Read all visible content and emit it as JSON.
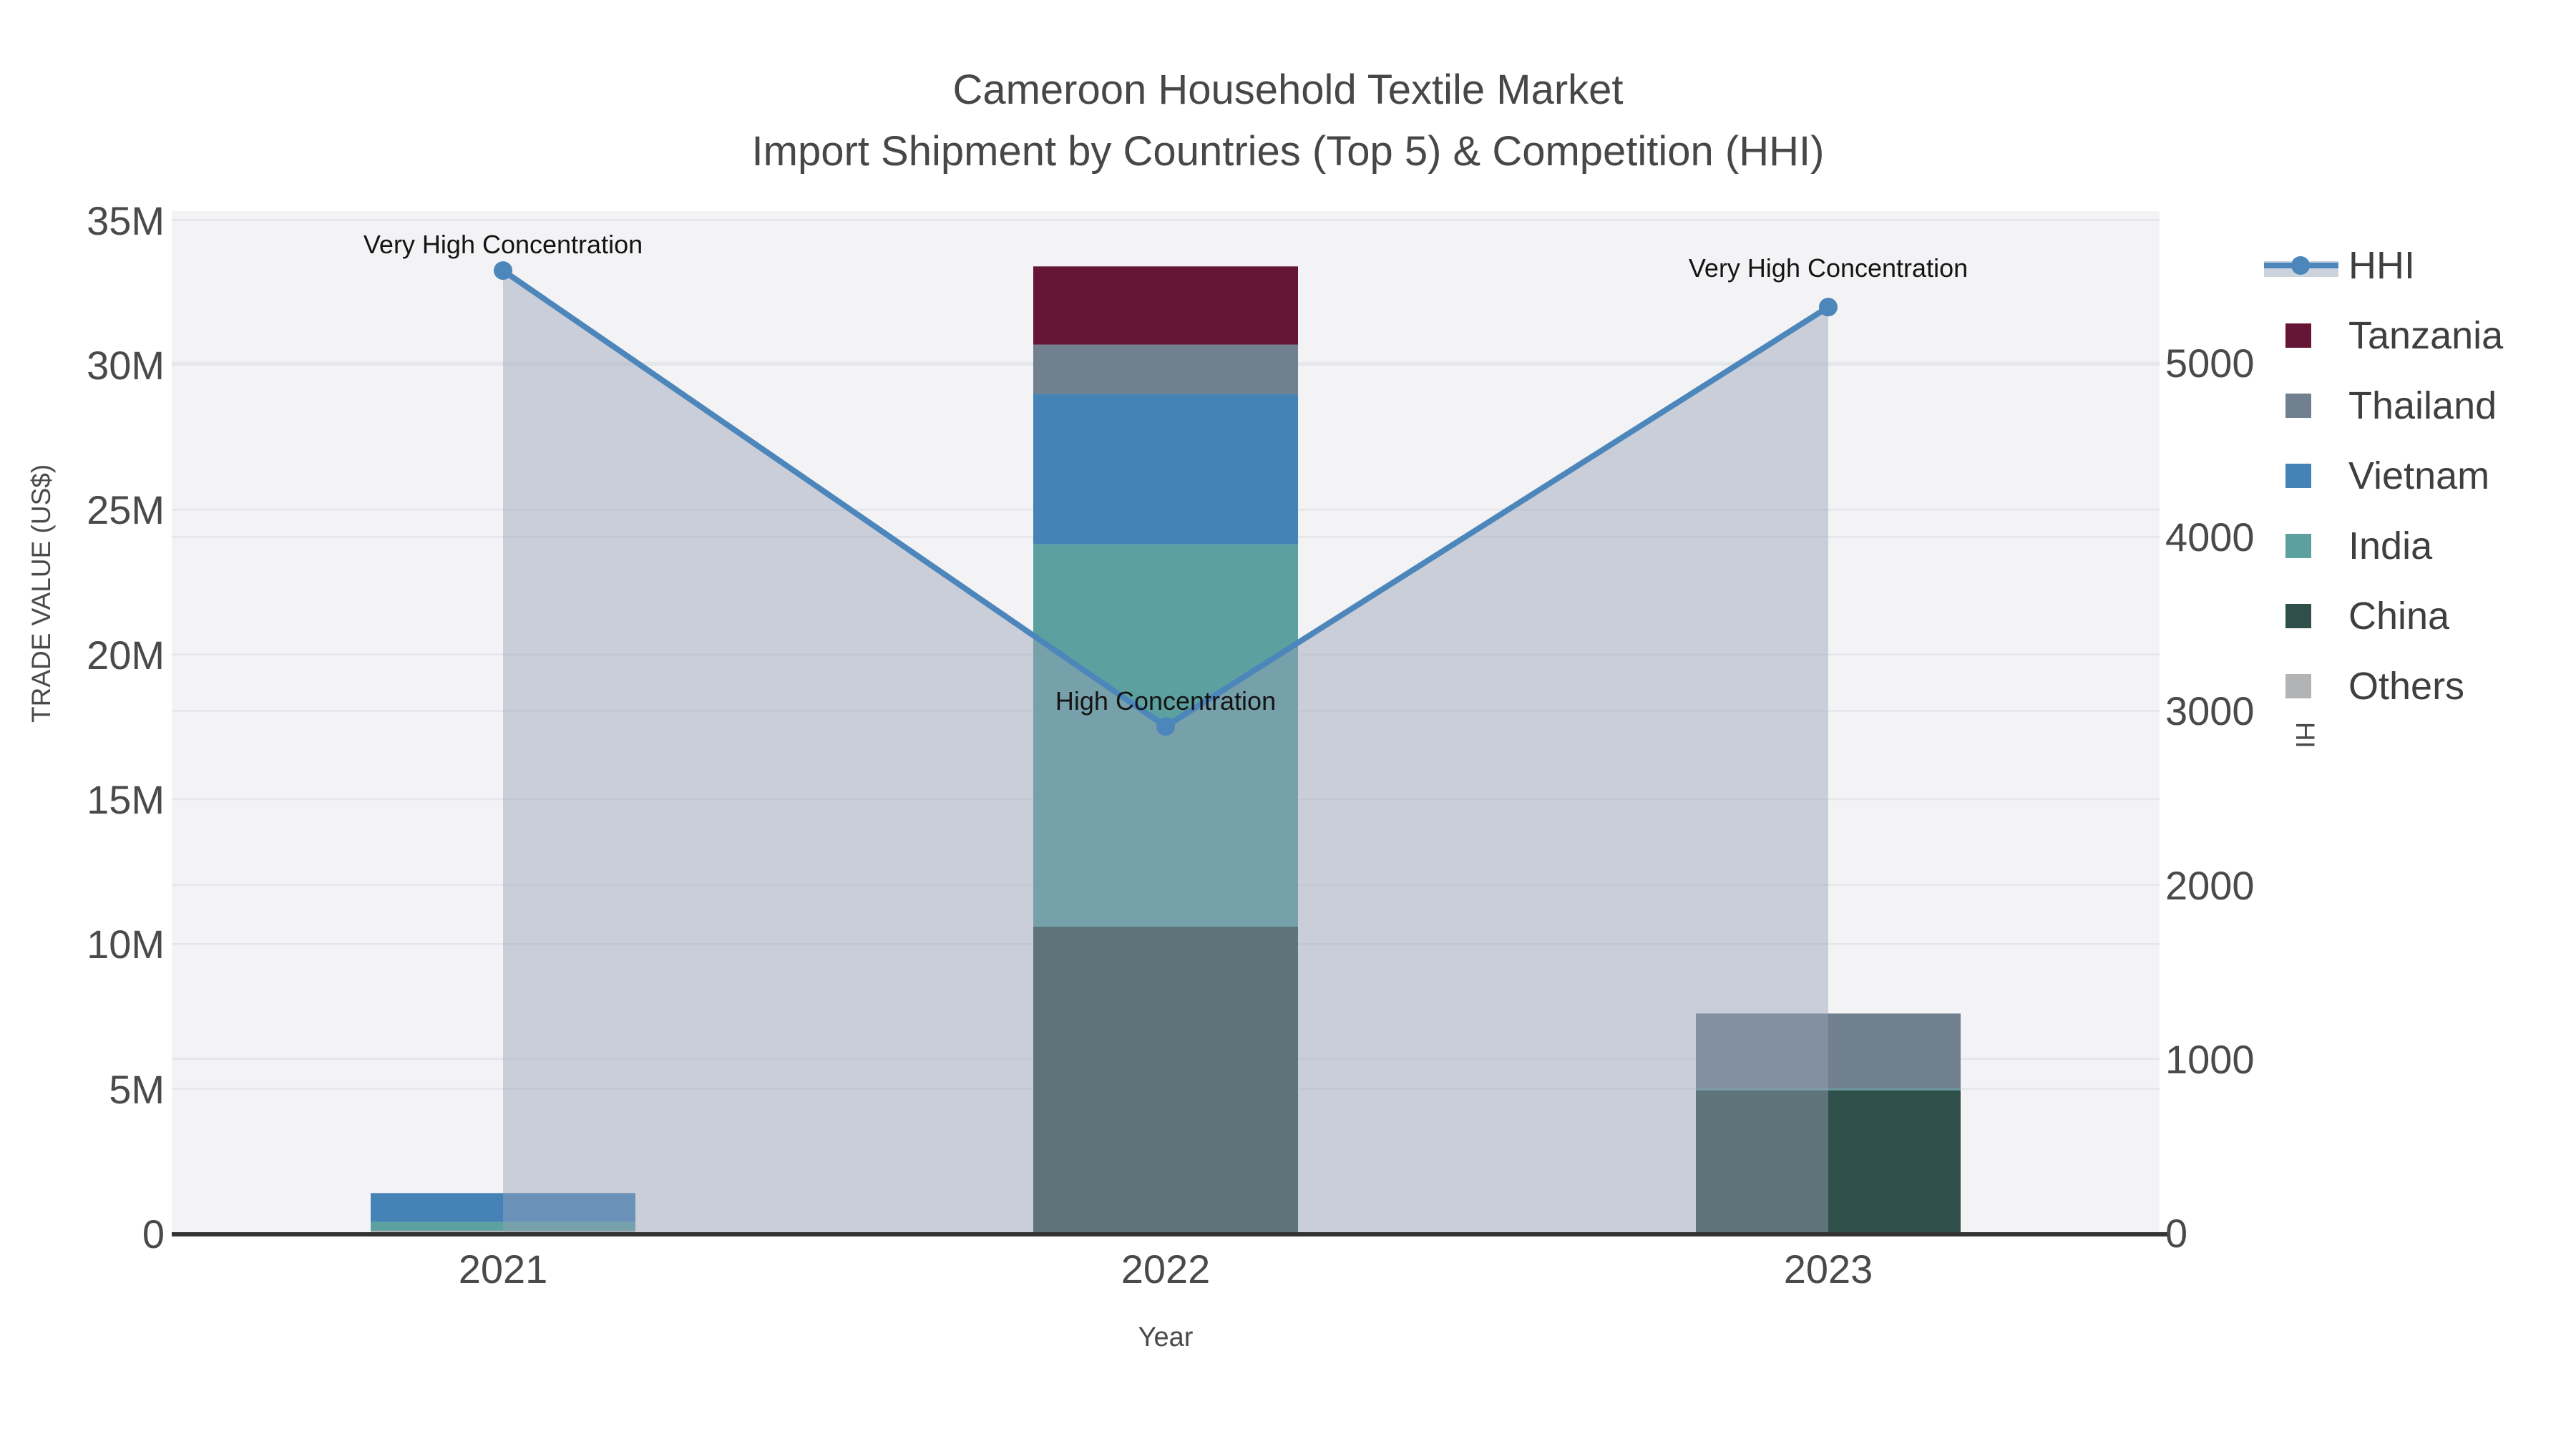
{
  "title": {
    "line1": "Cameroon Household Textile Market",
    "line2": "Import Shipment by Countries (Top 5) & Competition (HHI)"
  },
  "axes": {
    "x": {
      "title": "Year",
      "ticks": [
        "2021",
        "2022",
        "2023"
      ]
    },
    "y_left": {
      "title": "TRADE VALUE (US$)",
      "ticks": [
        "0",
        "5M",
        "10M",
        "15M",
        "20M",
        "25M",
        "30M",
        "35M"
      ],
      "tick_values_musd": [
        0,
        5,
        10,
        15,
        20,
        25,
        30,
        35
      ]
    },
    "y_right": {
      "title": "HHI",
      "ticks": [
        "0",
        "1000",
        "2000",
        "3000",
        "4000",
        "5000"
      ],
      "tick_values": [
        0,
        1000,
        2000,
        3000,
        4000,
        5000
      ]
    }
  },
  "legend": {
    "items": [
      {
        "label": "HHI",
        "type": "line",
        "color": "#4C86BB"
      },
      {
        "label": "Tanzania",
        "type": "swatch",
        "color": "#661536"
      },
      {
        "label": "Thailand",
        "type": "swatch",
        "color": "#71808F"
      },
      {
        "label": "Vietnam",
        "type": "swatch",
        "color": "#4583B7"
      },
      {
        "label": "India",
        "type": "swatch",
        "color": "#5CA1A0"
      },
      {
        "label": "China",
        "type": "swatch",
        "color": "#2F4F4A"
      },
      {
        "label": "Others",
        "type": "swatch",
        "color": "#B2B3B5"
      }
    ]
  },
  "annotations": [
    {
      "text": "Very High Concentration",
      "year": "2021",
      "dy": -35
    },
    {
      "text": "High Concentration",
      "year": "2022",
      "dy": -34
    },
    {
      "text": "Very High Concentration",
      "year": "2023",
      "dy": -53
    }
  ],
  "chart_data": {
    "type": "bar",
    "subtype": "stacked bars (left axis, trade value US$) + HHI line with area fill (right axis)",
    "categories": [
      "2021",
      "2022",
      "2023"
    ],
    "bar_unit": "USD millions",
    "stack_order_bottom_to_top": [
      "Others",
      "China",
      "India",
      "Vietnam",
      "Thailand",
      "Tanzania"
    ],
    "series": [
      {
        "name": "Others",
        "color": "#B2B3B5",
        "values": [
          0.1,
          0.0,
          0.0
        ]
      },
      {
        "name": "China",
        "color": "#2F4F4A",
        "values": [
          0.0,
          10.6,
          4.95
        ]
      },
      {
        "name": "India",
        "color": "#5CA1A0",
        "values": [
          0.3,
          13.2,
          0.05
        ]
      },
      {
        "name": "Vietnam",
        "color": "#4583B7",
        "values": [
          1.0,
          5.2,
          0.0
        ]
      },
      {
        "name": "Thailand",
        "color": "#71808F",
        "values": [
          0.0,
          1.7,
          2.6
        ]
      },
      {
        "name": "Tanzania",
        "color": "#661536",
        "values": [
          0.0,
          2.7,
          0.0
        ]
      }
    ],
    "line": {
      "name": "HHI",
      "color": "#4C86BB",
      "marker_radius": 13,
      "line_width": 8,
      "values": [
        5530,
        2910,
        5320
      ],
      "area_fill": "rgba(150,162,184,0.45)"
    },
    "title": "Cameroon Household Textile Market — Import Shipment by Countries (Top 5) & Competition (HHI)",
    "xlabel": "Year",
    "ylabel_left": "TRADE VALUE (US$)",
    "ylabel_right": "HHI",
    "ylim_left_musd": [
      0,
      35.4
    ],
    "ylim_right": [
      0,
      5880
    ],
    "grid": true,
    "legend_position": "right",
    "plot_bg": "#F3F3F5",
    "grid_color": "#E4E6E9",
    "axisline_color": "#333333"
  }
}
